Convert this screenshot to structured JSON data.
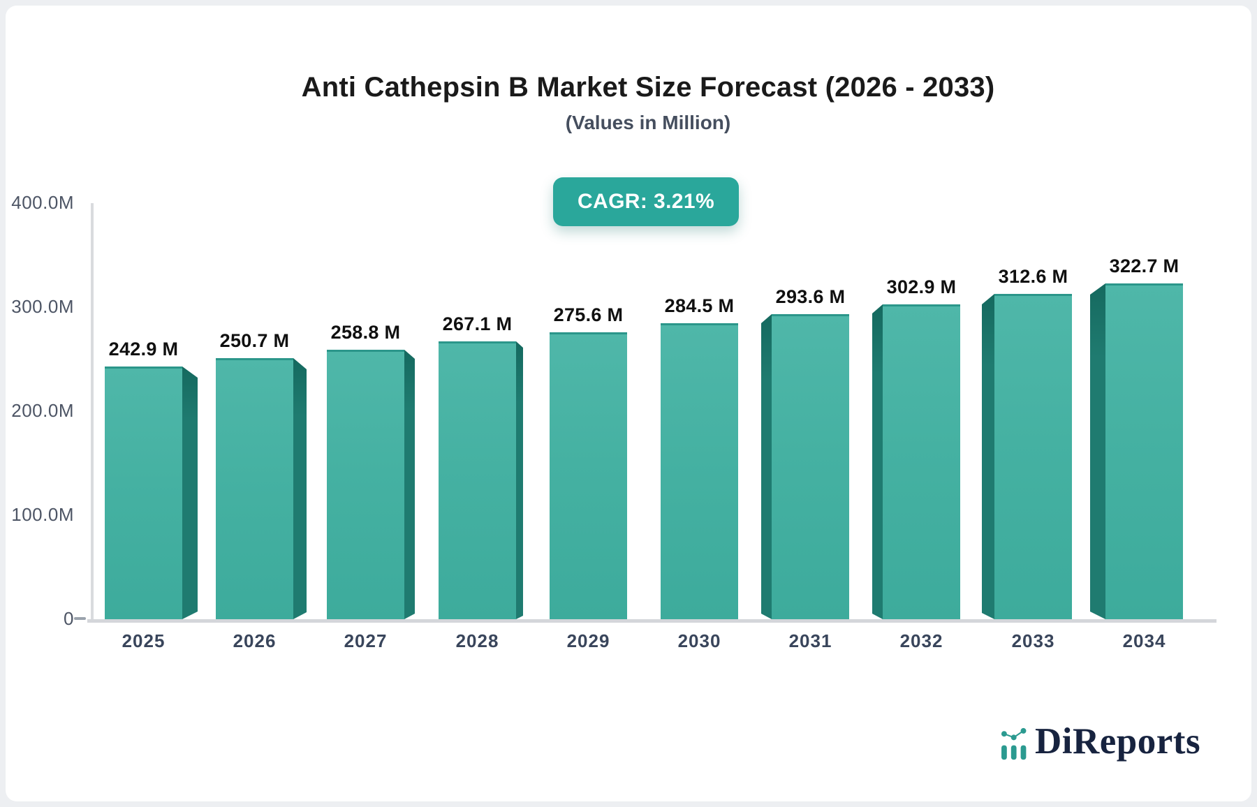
{
  "header": {
    "title": "Anti Cathepsin B Market Size Forecast (2026 - 2033)",
    "subtitle": "(Values in Million)",
    "cagr_label": "CAGR: 3.21%"
  },
  "chart_data": {
    "type": "bar",
    "title": "Anti Cathepsin B Market Size Forecast (2026 - 2033)",
    "subtitle": "(Values in Million)",
    "unit": "Million",
    "cagr_percent": 3.21,
    "categories": [
      "2025",
      "2026",
      "2027",
      "2028",
      "2029",
      "2030",
      "2031",
      "2032",
      "2033",
      "2034"
    ],
    "values": [
      242.9,
      250.7,
      258.8,
      267.1,
      275.6,
      284.5,
      293.6,
      302.9,
      312.6,
      322.7
    ],
    "value_labels": [
      "242.9 M",
      "250.7 M",
      "258.8 M",
      "267.1 M",
      "275.6 M",
      "284.5 M",
      "293.6 M",
      "302.9 M",
      "312.6 M",
      "322.7 M"
    ],
    "xlabel": "",
    "ylabel": "",
    "ylim": [
      0,
      400
    ],
    "yticks": [
      "400.0M",
      "300.0M",
      "200.0M",
      "100.0M",
      "0"
    ],
    "ytick_values": [
      400,
      300,
      200,
      100,
      0
    ],
    "grid": false,
    "legend": "none",
    "colors": {
      "bar_face": "#43b0a1",
      "bar_side": "#1f7b70",
      "bar_top_edge": "#2b968a",
      "badge": "#2aa79b",
      "axis": "#d4d6da",
      "tick_text": "#4d5565",
      "category_text": "#39455b",
      "value_text": "#101010"
    }
  },
  "branding": {
    "logo_text": "DiReports",
    "logo_icon": "mini-bar-chart-icon",
    "logo_color": "#2b9a90",
    "logo_text_color": "#17233f"
  }
}
